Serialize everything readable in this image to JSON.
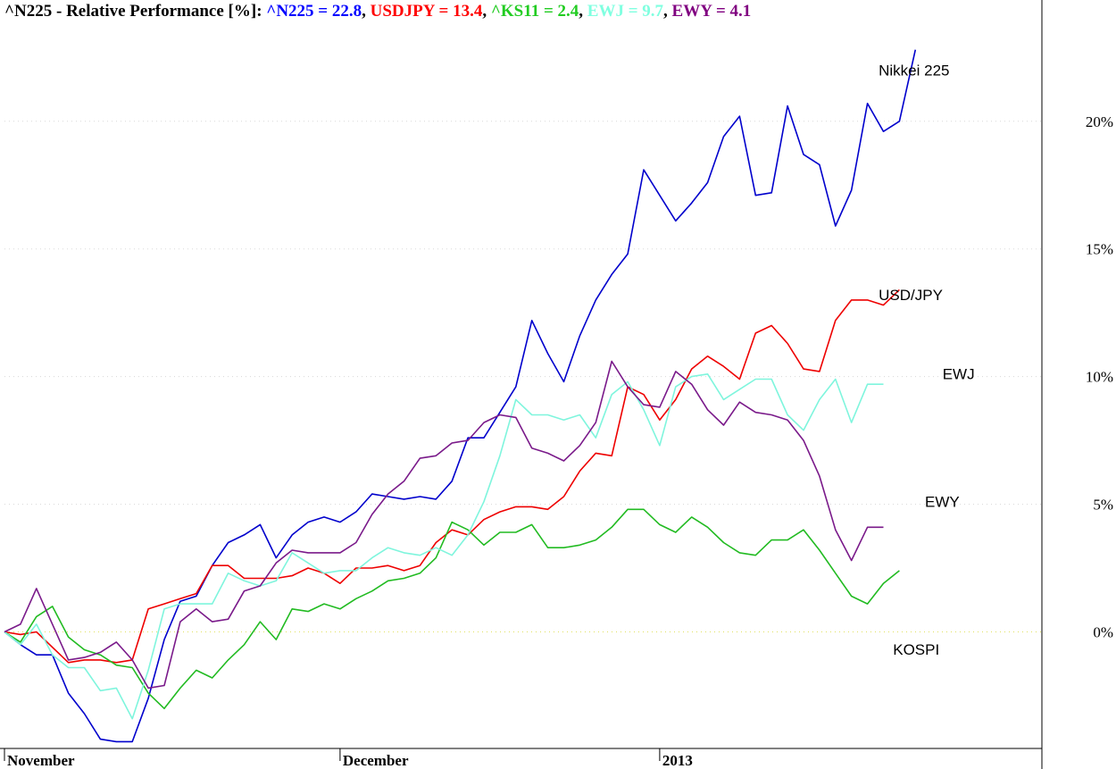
{
  "chart_data": {
    "type": "line",
    "title": "^N225 - Relative Performance [%]:",
    "title_entries": [
      {
        "text": "^N225 = 22.8",
        "color": "#0000ff"
      },
      {
        "text": "USDJPY = 13.4",
        "color": "#ff0000"
      },
      {
        "text": "^KS11 = 2.4",
        "color": "#22cc22"
      },
      {
        "text": "EWJ = 9.7",
        "color": "#80ffe0"
      },
      {
        "text": "EWY = 4.1",
        "color": "#800080"
      }
    ],
    "ylim": [
      -4.6,
      24.4
    ],
    "y_ticks": [
      {
        "value": 0,
        "label": "0%"
      },
      {
        "value": 5,
        "label": "5%"
      },
      {
        "value": 10,
        "label": "10%"
      },
      {
        "value": 15,
        "label": "15%"
      },
      {
        "value": 20,
        "label": "20%"
      }
    ],
    "x_labels": [
      {
        "index": 0,
        "label": "November"
      },
      {
        "index": 21,
        "label": "December"
      },
      {
        "index": 41,
        "label": "2013"
      }
    ],
    "x_count": 60,
    "grid": true,
    "annotations": [
      {
        "text": "Nikkei 225",
        "x": 54.7,
        "y": 21.8
      },
      {
        "text": "USD/JPY",
        "x": 54.7,
        "y": 13.0
      },
      {
        "text": "EWJ",
        "x": 58.7,
        "y": 9.9
      },
      {
        "text": "EWY",
        "x": 57.6,
        "y": 4.9
      },
      {
        "text": "KOSPI",
        "x": 55.6,
        "y": -0.9
      }
    ],
    "series": [
      {
        "name": "^N225",
        "color": "#0000cc",
        "values": [
          0,
          -0.5,
          -0.9,
          -0.9,
          -2.4,
          -3.2,
          -4.2,
          -4.3,
          -4.3,
          -2.6,
          -0.3,
          1.2,
          1.4,
          2.6,
          3.5,
          3.8,
          4.2,
          2.9,
          3.8,
          4.3,
          4.5,
          4.3,
          4.7,
          5.4,
          5.3,
          5.2,
          5.3,
          5.2,
          5.9,
          7.6,
          7.6,
          8.6,
          9.6,
          12.2,
          10.9,
          9.8,
          11.6,
          13.0,
          14.0,
          14.8,
          18.1,
          17.1,
          16.1,
          16.8,
          17.6,
          19.4,
          20.2,
          17.1,
          17.2,
          20.6,
          18.7,
          18.3,
          15.9,
          17.3,
          20.7,
          19.6,
          20.0,
          22.8
        ]
      },
      {
        "name": "USDJPY",
        "color": "#ee0000",
        "values": [
          0,
          -0.1,
          0,
          -0.6,
          -1.2,
          -1.1,
          -1.1,
          -1.2,
          -1.1,
          0.9,
          1.1,
          1.3,
          1.5,
          2.6,
          2.6,
          2.1,
          2.1,
          2.1,
          2.2,
          2.5,
          2.3,
          1.9,
          2.5,
          2.5,
          2.6,
          2.4,
          2.6,
          3.5,
          4.0,
          3.8,
          4.4,
          4.7,
          4.9,
          4.9,
          4.8,
          5.3,
          6.3,
          7.0,
          6.9,
          9.6,
          9.3,
          8.3,
          9.1,
          10.3,
          10.8,
          10.4,
          9.9,
          11.7,
          12.0,
          11.3,
          10.3,
          10.2,
          12.2,
          13.0,
          13.0,
          12.8,
          13.4
        ]
      },
      {
        "name": "^KS11",
        "color": "#22bb22",
        "values": [
          0,
          -0.4,
          0.6,
          1.0,
          -0.2,
          -0.7,
          -0.9,
          -1.3,
          -1.4,
          -2.4,
          -3.0,
          -2.2,
          -1.5,
          -1.8,
          -1.1,
          -0.5,
          0.4,
          -0.3,
          0.9,
          0.8,
          1.1,
          0.9,
          1.3,
          1.6,
          2.0,
          2.1,
          2.3,
          2.9,
          4.3,
          4.0,
          3.4,
          3.9,
          3.9,
          4.2,
          3.3,
          3.3,
          3.4,
          3.6,
          4.1,
          4.8,
          4.8,
          4.2,
          3.9,
          4.5,
          4.1,
          3.5,
          3.1,
          3.0,
          3.6,
          3.6,
          4.0,
          3.2,
          2.3,
          1.4,
          1.1,
          1.9,
          2.4
        ]
      },
      {
        "name": "EWJ",
        "color": "#7ff5dd",
        "values": [
          0,
          -0.5,
          0.3,
          -0.9,
          -1.4,
          -1.4,
          -2.3,
          -2.2,
          -3.4,
          -1.5,
          0.9,
          1.1,
          1.1,
          1.1,
          2.3,
          2.0,
          1.8,
          2.0,
          3.1,
          2.7,
          2.3,
          2.4,
          2.4,
          2.9,
          3.3,
          3.1,
          3.0,
          3.3,
          3.0,
          3.8,
          5.1,
          6.9,
          9.1,
          8.5,
          8.5,
          8.3,
          8.5,
          7.6,
          9.3,
          9.8,
          8.7,
          7.3,
          9.6,
          10.0,
          10.1,
          9.1,
          9.5,
          9.9,
          9.9,
          8.5,
          7.9,
          9.1,
          9.9,
          8.2,
          9.7,
          9.7
        ]
      },
      {
        "name": "EWY",
        "color": "#7a1a8a",
        "values": [
          0,
          0.3,
          1.7,
          0.3,
          -1.1,
          -1.0,
          -0.8,
          -0.4,
          -1.1,
          -2.2,
          -2.1,
          0.4,
          0.9,
          0.4,
          0.5,
          1.6,
          1.8,
          2.7,
          3.2,
          3.1,
          3.1,
          3.1,
          3.5,
          4.6,
          5.4,
          5.9,
          6.8,
          6.9,
          7.4,
          7.5,
          8.2,
          8.5,
          8.4,
          7.2,
          7.0,
          6.7,
          7.3,
          8.2,
          10.6,
          9.6,
          8.9,
          8.8,
          10.2,
          9.7,
          8.7,
          8.1,
          9.0,
          8.6,
          8.5,
          8.3,
          7.5,
          6.1,
          4.0,
          2.8,
          4.1,
          4.1
        ]
      }
    ]
  }
}
